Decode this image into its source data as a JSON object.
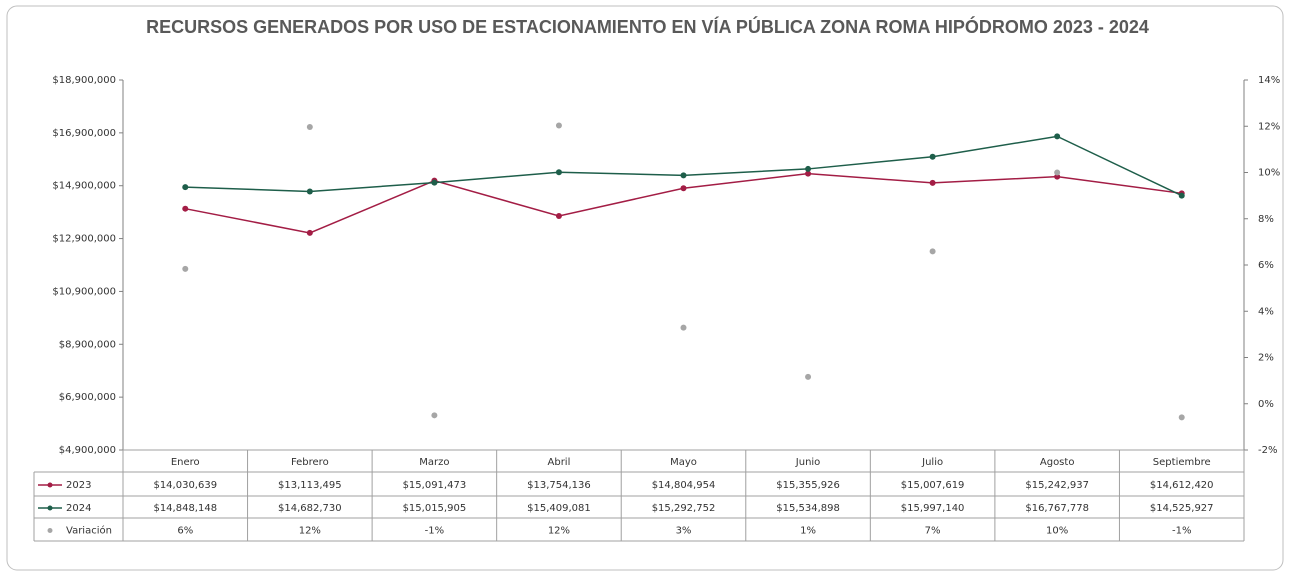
{
  "chart_data": {
    "type": "line",
    "title": "RECURSOS GENERADOS POR USO DE ESTACIONAMIENTO EN VÍA PÚBLICA ZONA ROMA HIPÓDROMO 2023 - 2024",
    "categories": [
      "Enero",
      "Febrero",
      "Marzo",
      "Abril",
      "Mayo",
      "Junio",
      "Julio",
      "Agosto",
      "Septiembre"
    ],
    "series": [
      {
        "name": "2023",
        "color": "#a31d45",
        "line": true,
        "values": [
          14030639,
          13113495,
          15091473,
          13754136,
          14804954,
          15355926,
          15007619,
          15242937,
          14612420
        ],
        "value_labels": [
          "$14,030,639",
          "$13,113,495",
          "$15,091,473",
          "$13,754,136",
          "$14,804,954",
          "$15,355,926",
          "$15,007,619",
          "$15,242,937",
          "$14,612,420"
        ]
      },
      {
        "name": "2024",
        "color": "#1e5e4a",
        "line": true,
        "values": [
          14848148,
          14682730,
          15015905,
          15409081,
          15292752,
          15534898,
          15997140,
          16767778,
          14525927
        ],
        "value_labels": [
          "$14,848,148",
          "$14,682,730",
          "$15,015,905",
          "$15,409,081",
          "$15,292,752",
          "$15,534,898",
          "$15,997,140",
          "$16,767,778",
          "$14,525,927"
        ]
      },
      {
        "name": "Variación",
        "color": "#a6a6a6",
        "line": false,
        "axis": "y2",
        "values": [
          5.83,
          11.97,
          -0.5,
          12.03,
          3.29,
          1.16,
          6.59,
          10.0,
          -0.59
        ],
        "value_labels": [
          "6%",
          "12%",
          "-1%",
          "12%",
          "3%",
          "1%",
          "7%",
          "10%",
          "-1%"
        ]
      }
    ],
    "ylim": [
      4900000,
      18900000
    ],
    "yticks": [
      {
        "value": 4900000,
        "label": "$4,900,000"
      },
      {
        "value": 6900000,
        "label": "$6,900,000"
      },
      {
        "value": 8900000,
        "label": "$8,900,000"
      },
      {
        "value": 10900000,
        "label": "$10,900,000"
      },
      {
        "value": 12900000,
        "label": "$12,900,000"
      },
      {
        "value": 14900000,
        "label": "$14,900,000"
      },
      {
        "value": 16900000,
        "label": "$16,900,000"
      },
      {
        "value": 18900000,
        "label": "$18,900,000"
      }
    ],
    "y2lim": [
      -2,
      14
    ],
    "y2ticks": [
      {
        "value": -2,
        "label": "-2%"
      },
      {
        "value": 0,
        "label": "0%"
      },
      {
        "value": 2,
        "label": "2%"
      },
      {
        "value": 4,
        "label": "4%"
      },
      {
        "value": 6,
        "label": "6%"
      },
      {
        "value": 8,
        "label": "8%"
      },
      {
        "value": 10,
        "label": "10%"
      },
      {
        "value": 12,
        "label": "12%"
      },
      {
        "value": 14,
        "label": "14%"
      }
    ],
    "grid": false
  }
}
